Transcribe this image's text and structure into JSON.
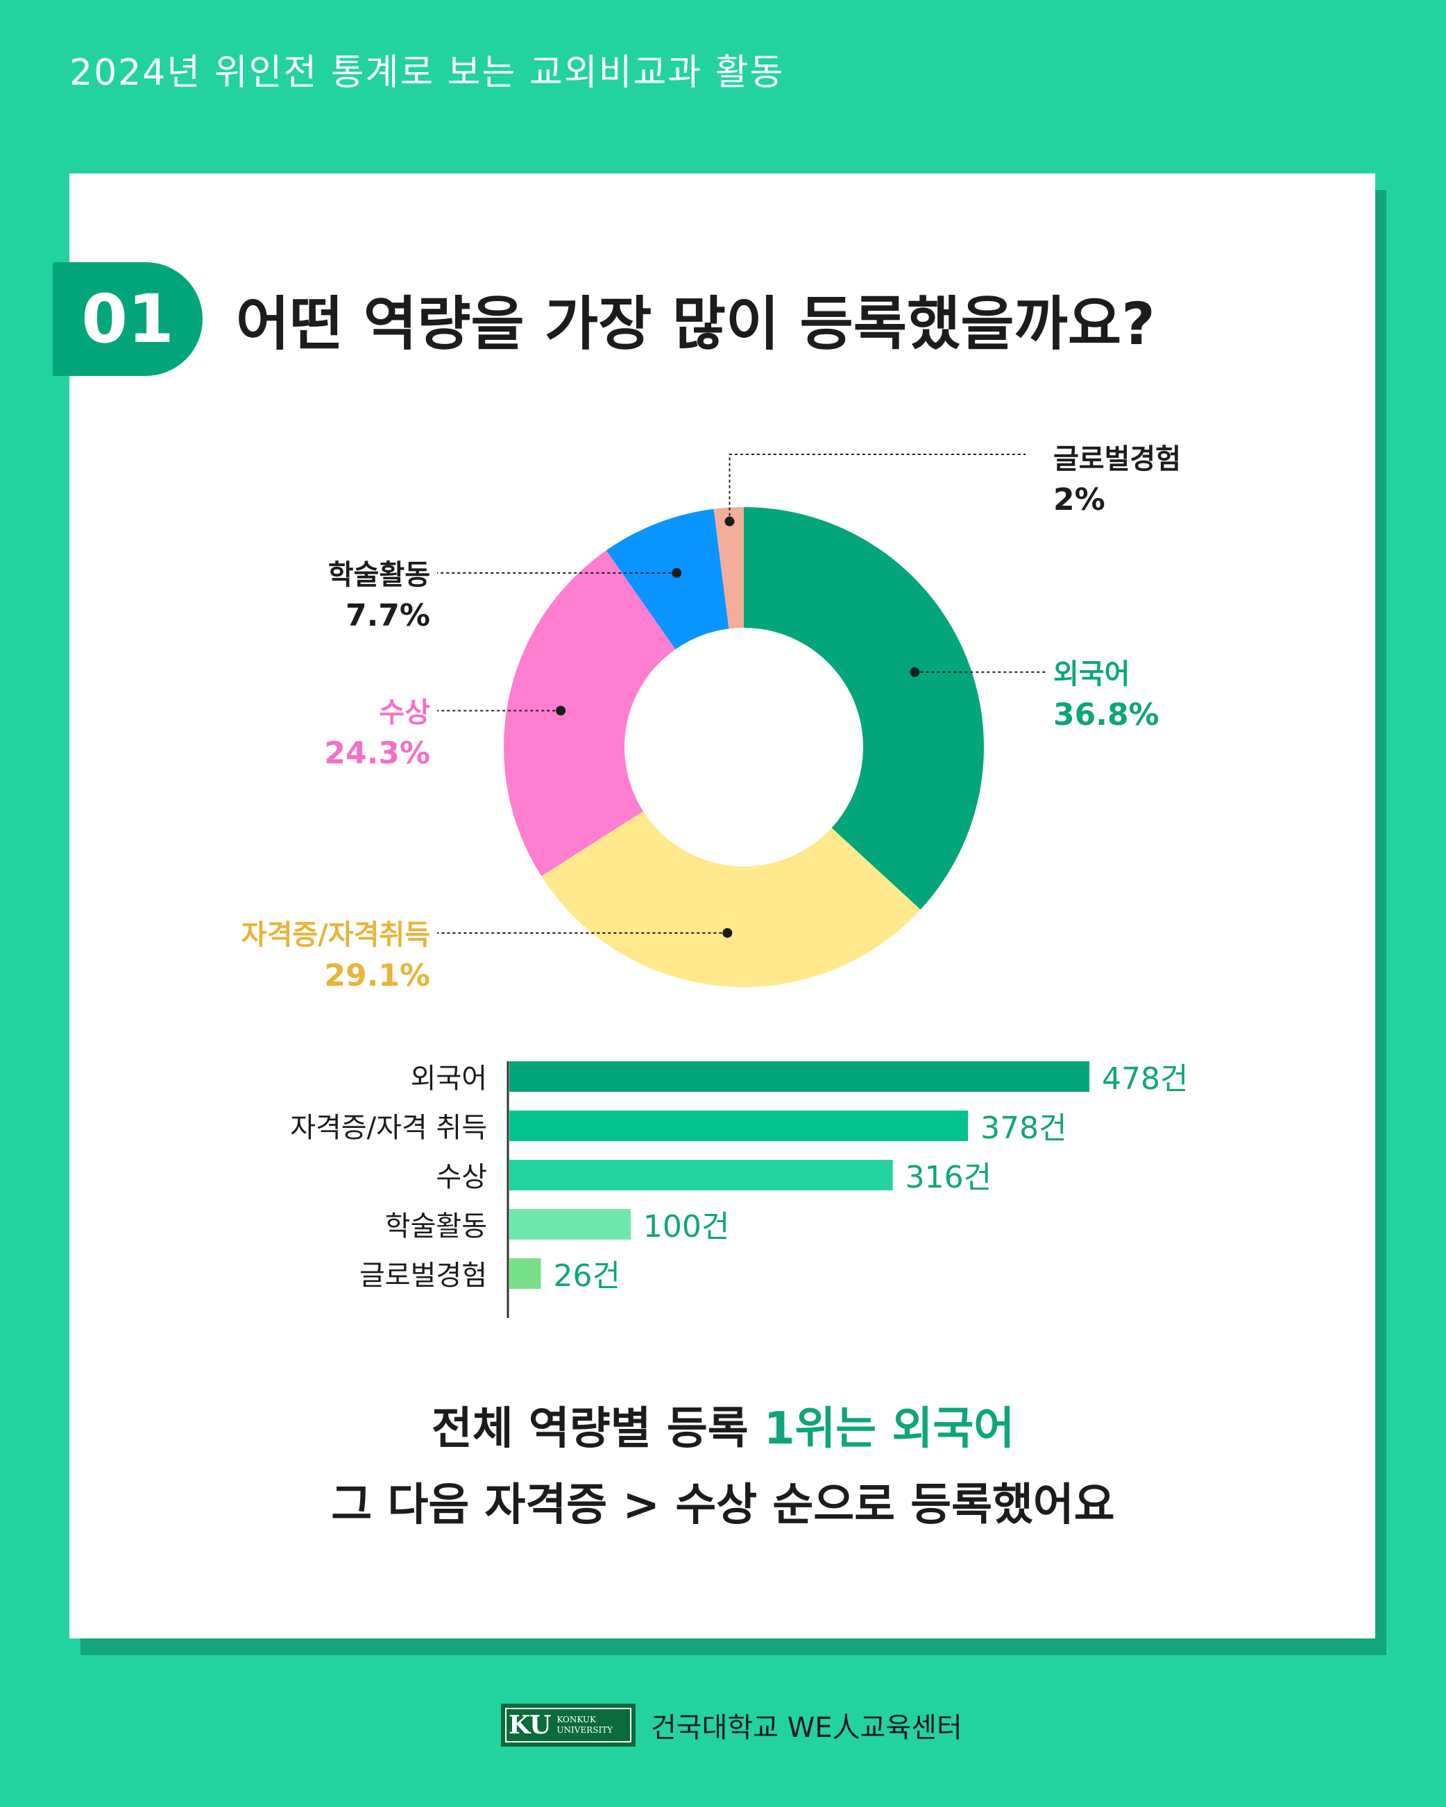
{
  "header": {
    "title": "2024년 위인전 통계로 보는 교외비교과 활동"
  },
  "card": {
    "badge": "01",
    "question": "어떤 역량을 가장 많이 등록했을까요?"
  },
  "chart_data": [
    {
      "type": "pie",
      "donut": true,
      "categories": [
        "외국어",
        "자격증/자격취득",
        "수상",
        "학술활동",
        "글로벌경험"
      ],
      "values": [
        36.8,
        29.1,
        24.3,
        7.7,
        2
      ],
      "value_labels": [
        "36.8%",
        "29.1%",
        "24.3%",
        "7.7%",
        "2%"
      ],
      "colors": [
        "#02A67A",
        "#FFE98C",
        "#FF7ED0",
        "#0A94FF",
        "#F2AE9B"
      ],
      "label_colors": [
        "#0EA57A",
        "#E8B43A",
        "#F56FC8",
        "#1c1c1c",
        "#1c1c1c"
      ]
    },
    {
      "type": "bar",
      "orientation": "horizontal",
      "categories": [
        "외국어",
        "자격증/자격 취득",
        "수상",
        "학술활동",
        "글로벌경험"
      ],
      "values": [
        478,
        378,
        316,
        100,
        26
      ],
      "unit": "건",
      "value_labels": [
        "478건",
        "378건",
        "316건",
        "100건",
        "26건"
      ],
      "colors": [
        "#02A67A",
        "#02C38D",
        "#22D3A0",
        "#6EE8AA",
        "#79E08A"
      ],
      "label_color": "#0EA57A"
    }
  ],
  "summary": {
    "line1_prefix": "전체 역량별 등록 ",
    "line1_highlight": "1위는 외국어",
    "line2": "그 다음 자격증 > 수상 순으로 등록했어요"
  },
  "footer": {
    "logo_mark": "KU",
    "logo_text_1": "KONKUK",
    "logo_text_2": "UNIVERSITY",
    "org": "건국대학교 WE人교육센터"
  }
}
